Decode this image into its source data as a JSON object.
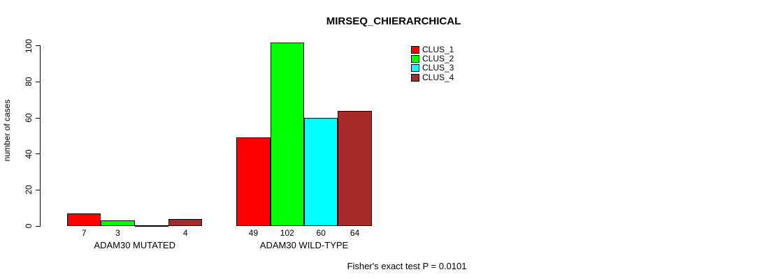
{
  "chart_data": {
    "type": "bar",
    "title": "MIRSEQ_CHIERARCHICAL",
    "ylabel": "number of cases",
    "xlabel": "",
    "ylim": [
      0,
      100
    ],
    "yticks": [
      0,
      20,
      40,
      60,
      80,
      100
    ],
    "grid": false,
    "legend_position": "top-right",
    "series": [
      {
        "name": "CLUS_1",
        "color": "#FF0000"
      },
      {
        "name": "CLUS_2",
        "color": "#00FF00"
      },
      {
        "name": "CLUS_3",
        "color": "#00FFFF"
      },
      {
        "name": "CLUS_4",
        "color": "#A52A2A"
      }
    ],
    "categories": [
      "ADAM30 MUTATED",
      "ADAM30 WILD-TYPE"
    ],
    "groups": [
      {
        "label": "ADAM30 MUTATED",
        "values": [
          7,
          3,
          0,
          4
        ],
        "bar_labels": [
          "7",
          "3",
          "",
          "4"
        ]
      },
      {
        "label": "ADAM30 WILD-TYPE",
        "values": [
          49,
          102,
          60,
          64
        ],
        "bar_labels": [
          "49",
          "102",
          "60",
          "64"
        ]
      }
    ],
    "annotation": "Fisher's exact test P = 0.0101"
  }
}
